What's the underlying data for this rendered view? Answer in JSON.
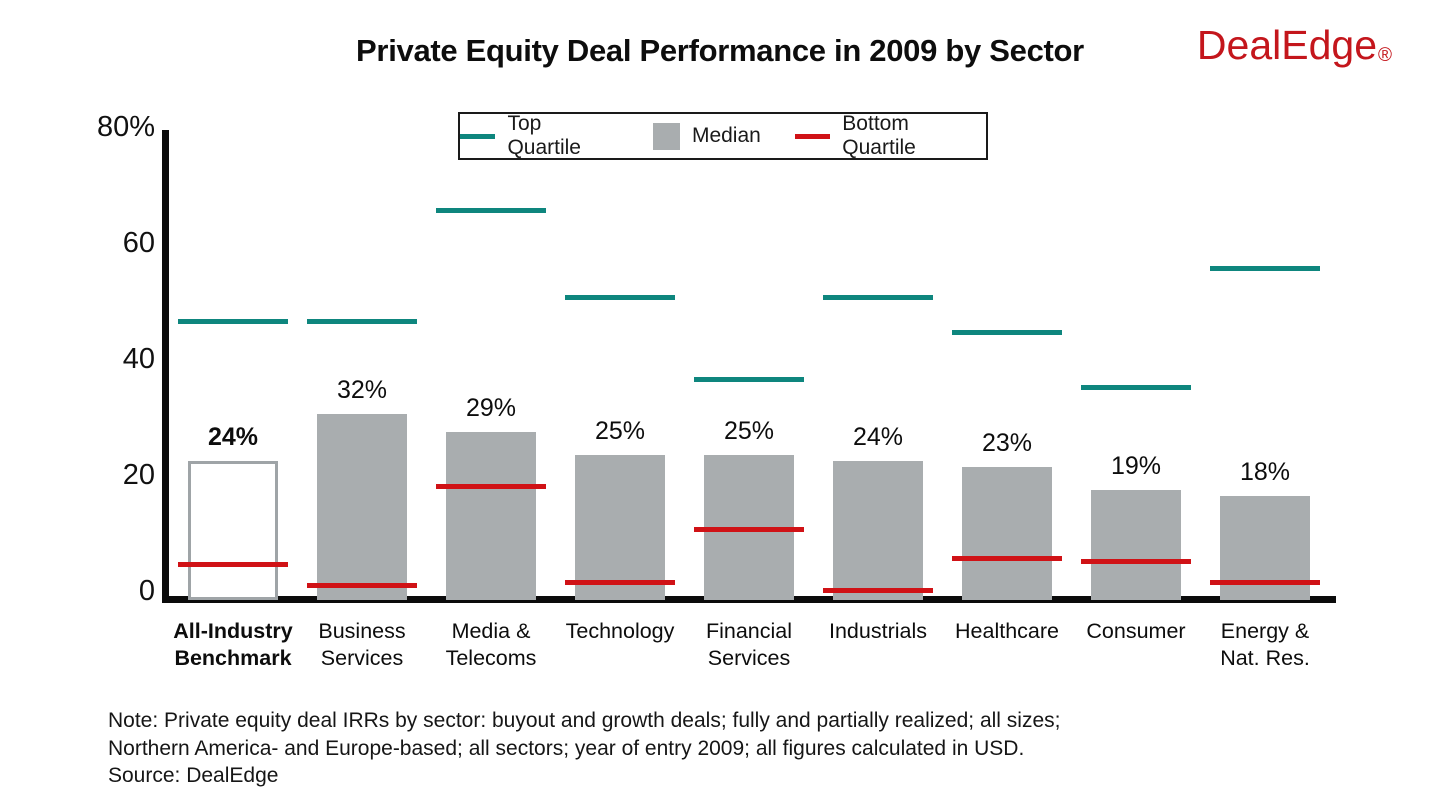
{
  "header": {
    "title": "Private Equity Deal Performance in 2009 by Sector",
    "logo_text": "DealEdge",
    "logo_reg_mark": "®",
    "logo_color": "#C4161C"
  },
  "legend": {
    "position": "top",
    "items": [
      {
        "label": "Top Quartile",
        "swatch": "line",
        "color": "#0E867E"
      },
      {
        "label": "Median",
        "swatch": "square",
        "color": "#A9ADAF"
      },
      {
        "label": "Bottom Quartile",
        "swatch": "line",
        "color": "#D01216"
      }
    ]
  },
  "chart_data": {
    "type": "bar",
    "title": "Private Equity Deal Performance in 2009 by Sector",
    "grid": "off",
    "ylim": [
      0,
      80
    ],
    "y_axis": {
      "ticks": [
        {
          "value": 0,
          "label": "0"
        },
        {
          "value": 20,
          "label": "20"
        },
        {
          "value": 40,
          "label": "40"
        },
        {
          "value": 60,
          "label": "60"
        },
        {
          "value": 80,
          "label": "80%"
        }
      ]
    },
    "categories": [
      {
        "label_lines": [
          "All-Industry",
          "Benchmark"
        ],
        "emphasis": true,
        "bar_style": "outlined"
      },
      {
        "label_lines": [
          "Business",
          "Services"
        ],
        "emphasis": false,
        "bar_style": "filled"
      },
      {
        "label_lines": [
          "Media &",
          "Telecoms"
        ],
        "emphasis": false,
        "bar_style": "filled"
      },
      {
        "label_lines": [
          "Technology"
        ],
        "emphasis": false,
        "bar_style": "filled"
      },
      {
        "label_lines": [
          "Financial",
          "Services"
        ],
        "emphasis": false,
        "bar_style": "filled"
      },
      {
        "label_lines": [
          "Industrials"
        ],
        "emphasis": false,
        "bar_style": "filled"
      },
      {
        "label_lines": [
          "Healthcare"
        ],
        "emphasis": false,
        "bar_style": "filled"
      },
      {
        "label_lines": [
          "Consumer"
        ],
        "emphasis": false,
        "bar_style": "filled"
      },
      {
        "label_lines": [
          "Energy &",
          "Nat. Res."
        ],
        "emphasis": false,
        "bar_style": "filled"
      }
    ],
    "series": [
      {
        "name": "Top Quartile",
        "render": "tick-line",
        "color": "#0E867E",
        "values": [
          48,
          48,
          67,
          52,
          38,
          52,
          46,
          36.5,
          57
        ]
      },
      {
        "name": "Median",
        "render": "bar",
        "color": "#A9ADAF",
        "values": [
          24,
          32,
          29,
          25,
          25,
          24,
          23,
          19,
          18
        ],
        "labels": [
          "24%",
          "32%",
          "29%",
          "25%",
          "25%",
          "24%",
          "23%",
          "19%",
          "18%"
        ]
      },
      {
        "name": "Bottom Quartile",
        "render": "tick-line",
        "color": "#D01216",
        "values": [
          6,
          2.5,
          19.5,
          3,
          12,
          1.5,
          7,
          6.5,
          3
        ]
      }
    ]
  },
  "footnote": {
    "line1": "Note: Private equity deal IRRs by sector: buyout and growth deals; fully and partially realized; all sizes;",
    "line2": "Northern America- and Europe-based; all sectors; year of entry 2009; all figures calculated in USD.",
    "line3": "Source: DealEdge"
  }
}
